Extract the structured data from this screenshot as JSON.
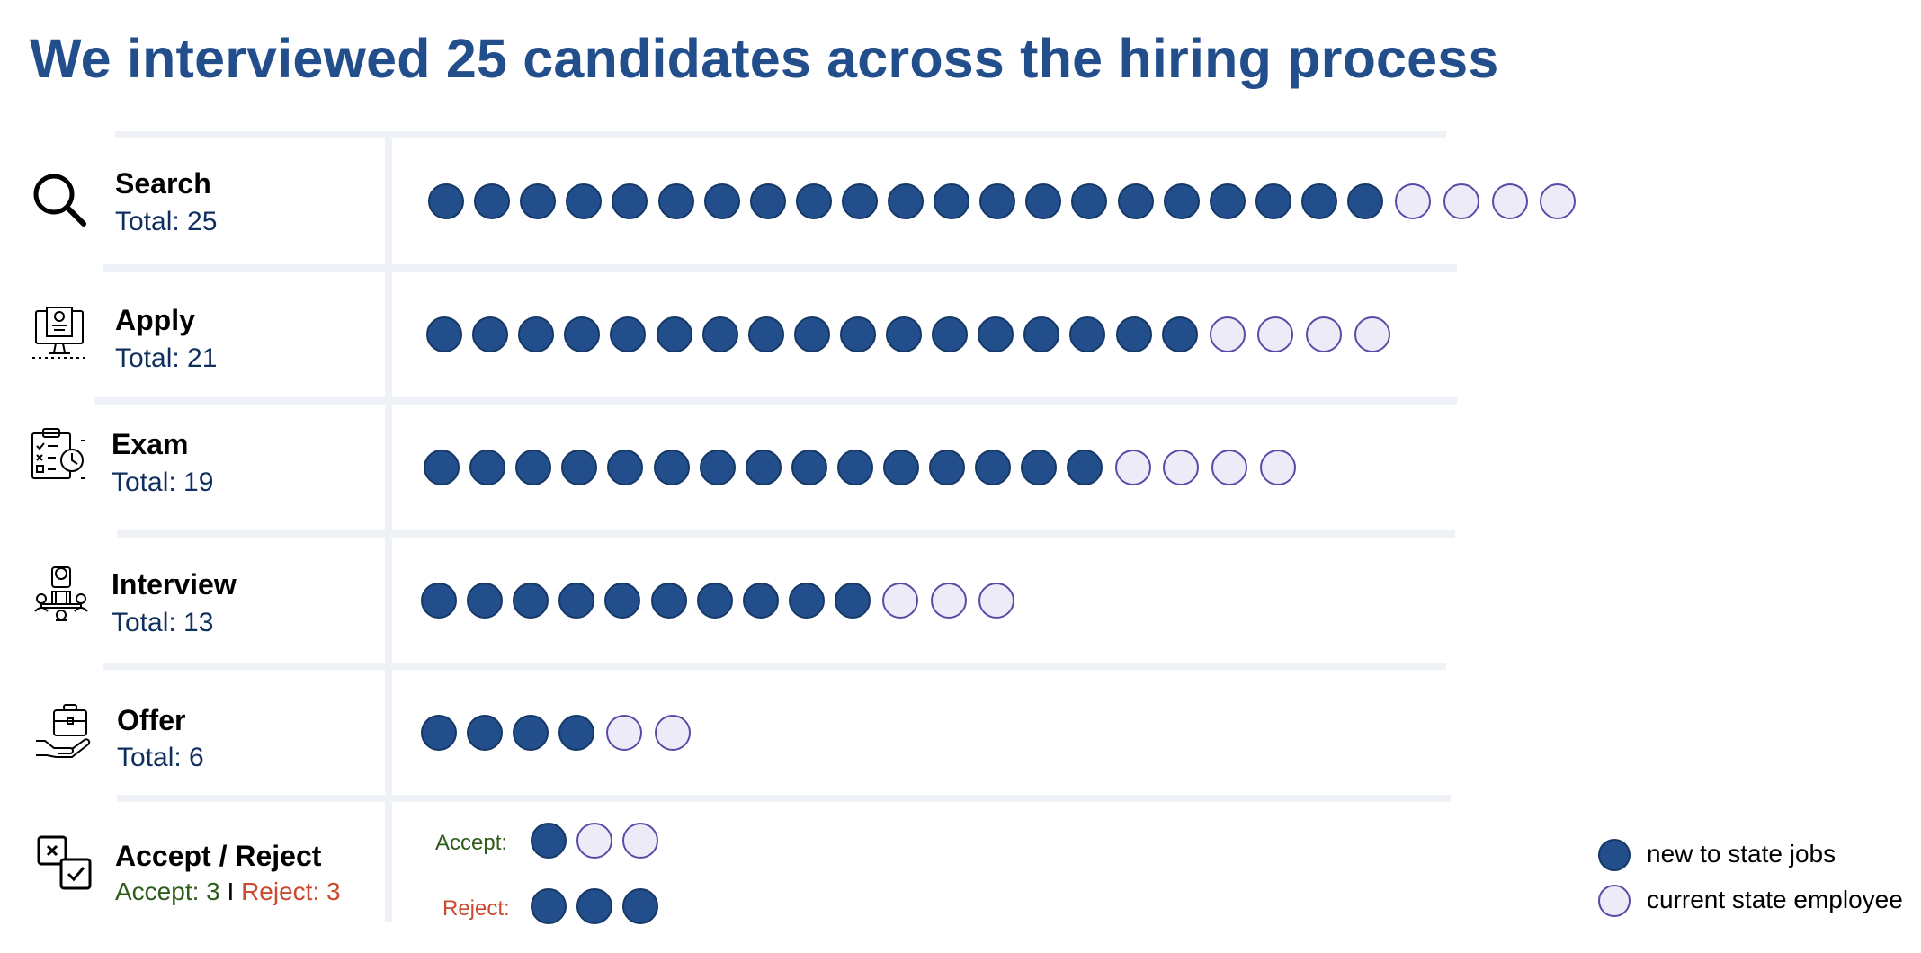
{
  "title": "We interviewed 25 candidates across the hiring process",
  "chart_data": {
    "type": "dot-matrix",
    "title": "We interviewed 25 candidates across the hiring process",
    "legend": {
      "new": "new to state jobs",
      "current": "current state employee",
      "placement": "bottom-right"
    },
    "colors": {
      "new": "#234e8c",
      "current": "#eeebf8",
      "current_outline": "#5a4aa8",
      "accept": "#2f5d1c",
      "reject": "#c94a2e"
    },
    "stages": [
      {
        "name": "Search",
        "total_label": "Total: 25",
        "new": 21,
        "current": 4
      },
      {
        "name": "Apply",
        "total_label": "Total: 21",
        "new": 17,
        "current": 4
      },
      {
        "name": "Exam",
        "total_label": "Total: 19",
        "new": 15,
        "current": 4
      },
      {
        "name": "Interview",
        "total_label": "Total: 13",
        "new": 10,
        "current": 3
      },
      {
        "name": "Offer",
        "total_label": "Total: 6",
        "new": 4,
        "current": 2
      }
    ],
    "final_stage": {
      "name": "Accept / Reject",
      "accept_label": "Accept: 3",
      "separator": "I",
      "reject_label": "Reject: 3",
      "accept": {
        "label": "Accept:",
        "new": 1,
        "current": 2
      },
      "reject": {
        "label": "Reject:",
        "new": 3,
        "current": 0
      }
    }
  },
  "icons": [
    "search-icon",
    "computer-application-icon",
    "exam-clipboard-icon",
    "interview-panel-icon",
    "offer-briefcase-icon",
    "accept-reject-icon"
  ]
}
